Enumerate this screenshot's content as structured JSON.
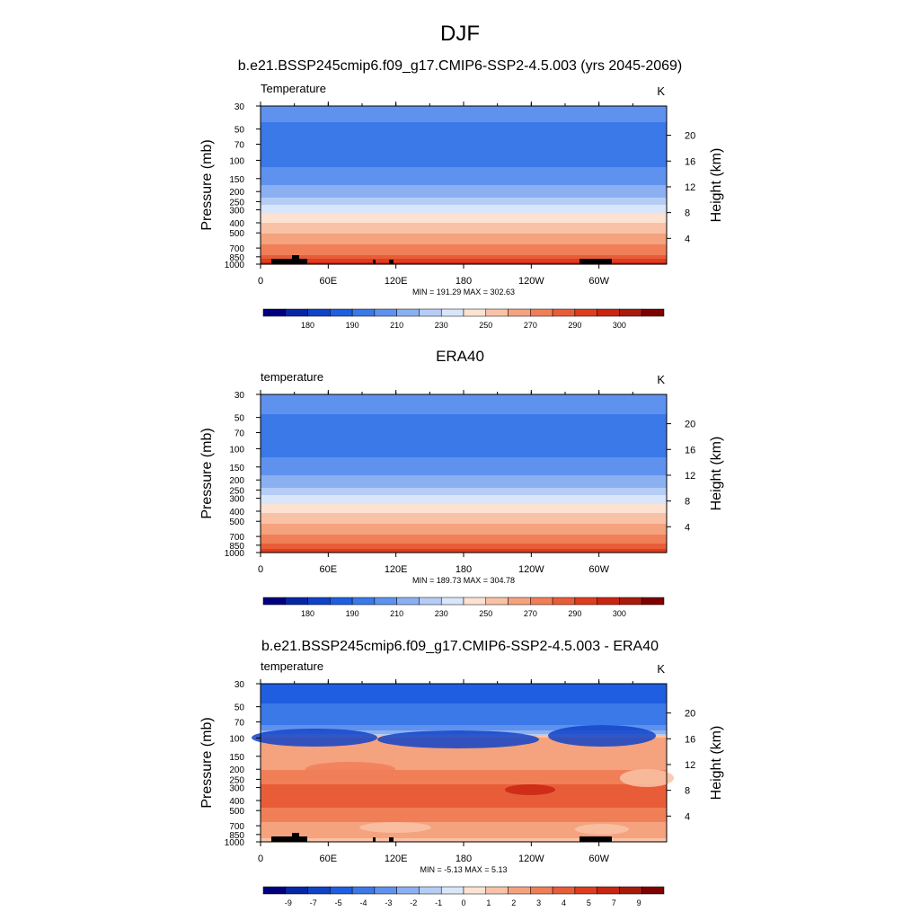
{
  "figure": {
    "title": "DJF",
    "colors": {
      "abs_palette": [
        "#00007f",
        "#0626a6",
        "#1043c8",
        "#1f5ee0",
        "#3b78e8",
        "#5f92ee",
        "#8bb0f2",
        "#b5cdf6",
        "#d9e6fa",
        "#fde2d2",
        "#f9c2a6",
        "#f5a27e",
        "#f07f58",
        "#e85d38",
        "#de3d1f",
        "#c92512",
        "#a81b0a",
        "#7f0000"
      ],
      "diff_palette": [
        "#00007f",
        "#0626a6",
        "#1043c8",
        "#1f5ee0",
        "#3b78e8",
        "#5f92ee",
        "#8bb0f2",
        "#b5cdf6",
        "#d9e6fa",
        "#fde2d2",
        "#f9c2a6",
        "#f5a27e",
        "#f07f58",
        "#e85d38",
        "#de3d1f",
        "#c92512",
        "#a81b0a",
        "#7f0000"
      ]
    }
  },
  "chart_data": [
    {
      "type": "heatmap",
      "title": "b.e21.BSSP245cmip6.f09_g17.CMIP6-SSP2-4.5.003 (yrs 2045-2069)",
      "variable": "Temperature",
      "units": "K",
      "ylabel": "Pressure (mb)",
      "ylabel_right": "Height (km)",
      "x_ticks": [
        "0",
        "60E",
        "120E",
        "180",
        "120W",
        "60W"
      ],
      "y_ticks": [
        "30",
        "50",
        "70",
        "100",
        "150",
        "200",
        "250",
        "300",
        "400",
        "500",
        "700",
        "850",
        "1000"
      ],
      "y_right_ticks": [
        "20",
        "16",
        "12",
        "8",
        "4"
      ],
      "min_max": "MIN = 191.29  MAX = 302.63",
      "min": 191.29,
      "max": 302.63,
      "colorbar_labels": [
        "180",
        "190",
        "210",
        "230",
        "250",
        "270",
        "290",
        "300"
      ],
      "level_values": [
        [
          30,
          205
        ],
        [
          40,
          201
        ],
        [
          50,
          197
        ],
        [
          70,
          196
        ],
        [
          100,
          197
        ],
        [
          120,
          201
        ],
        [
          150,
          206
        ],
        [
          180,
          211
        ],
        [
          200,
          214
        ],
        [
          220,
          218
        ],
        [
          250,
          224
        ],
        [
          275,
          231
        ],
        [
          300,
          236
        ],
        [
          350,
          243
        ],
        [
          400,
          250
        ],
        [
          450,
          255
        ],
        [
          500,
          259
        ],
        [
          550,
          263
        ],
        [
          600,
          267
        ],
        [
          700,
          273
        ],
        [
          800,
          279
        ],
        [
          850,
          283
        ],
        [
          925,
          288
        ],
        [
          1000,
          294
        ]
      ],
      "topography": true
    },
    {
      "type": "heatmap",
      "title": "ERA40",
      "variable": "temperature",
      "units": "K",
      "ylabel": "Pressure (mb)",
      "ylabel_right": "Height (km)",
      "x_ticks": [
        "0",
        "60E",
        "120E",
        "180",
        "120W",
        "60W"
      ],
      "y_ticks": [
        "30",
        "50",
        "70",
        "100",
        "150",
        "200",
        "250",
        "300",
        "400",
        "500",
        "700",
        "850",
        "1000"
      ],
      "y_right_ticks": [
        "20",
        "16",
        "12",
        "8",
        "4"
      ],
      "min_max": "MIN = 189.73  MAX = 304.78",
      "min": 189.73,
      "max": 304.78,
      "colorbar_labels": [
        "180",
        "190",
        "210",
        "230",
        "250",
        "270",
        "290",
        "300"
      ],
      "level_values": [
        [
          30,
          206
        ],
        [
          40,
          202
        ],
        [
          50,
          199
        ],
        [
          70,
          196
        ],
        [
          100,
          197
        ],
        [
          120,
          200
        ],
        [
          150,
          205
        ],
        [
          180,
          210
        ],
        [
          200,
          213
        ],
        [
          220,
          217
        ],
        [
          250,
          223
        ],
        [
          275,
          229
        ],
        [
          300,
          234
        ],
        [
          350,
          241
        ],
        [
          400,
          248
        ],
        [
          450,
          253
        ],
        [
          500,
          258
        ],
        [
          550,
          262
        ],
        [
          600,
          266
        ],
        [
          700,
          272
        ],
        [
          800,
          278
        ],
        [
          850,
          281
        ],
        [
          925,
          286
        ],
        [
          1000,
          291
        ]
      ],
      "topography": false
    },
    {
      "type": "heatmap",
      "title": "b.e21.BSSP245cmip6.f09_g17.CMIP6-SSP2-4.5.003 - ERA40",
      "variable": "temperature",
      "units": "K",
      "ylabel": "Pressure (mb)",
      "ylabel_right": "Height (km)",
      "x_ticks": [
        "0",
        "60E",
        "120E",
        "180",
        "120W",
        "60W"
      ],
      "y_ticks": [
        "30",
        "50",
        "70",
        "100",
        "150",
        "200",
        "250",
        "300",
        "400",
        "500",
        "700",
        "850",
        "1000"
      ],
      "y_right_ticks": [
        "20",
        "16",
        "12",
        "8",
        "4"
      ],
      "min_max": "MIN = -5.13  MAX =   5.13",
      "min": -5.13,
      "max": 5.13,
      "colorbar_labels": [
        "-9",
        "-7",
        "-5",
        "-4",
        "-3",
        "-2",
        "-1",
        "0",
        "1",
        "2",
        "3",
        "4",
        "5",
        "7",
        "9"
      ],
      "level_values": [
        [
          30,
          -4.6
        ],
        [
          40,
          -4.2
        ],
        [
          50,
          -3.9
        ],
        [
          70,
          -3.4
        ],
        [
          90,
          -1.5
        ],
        [
          100,
          1.3
        ],
        [
          120,
          1.6
        ],
        [
          150,
          1.7
        ],
        [
          200,
          1.9
        ],
        [
          250,
          2.6
        ],
        [
          300,
          3.3
        ],
        [
          350,
          3.6
        ],
        [
          400,
          3.4
        ],
        [
          500,
          2.8
        ],
        [
          600,
          2.2
        ],
        [
          700,
          1.7
        ],
        [
          850,
          1.2
        ],
        [
          1000,
          0.8
        ]
      ],
      "topography": true
    }
  ]
}
